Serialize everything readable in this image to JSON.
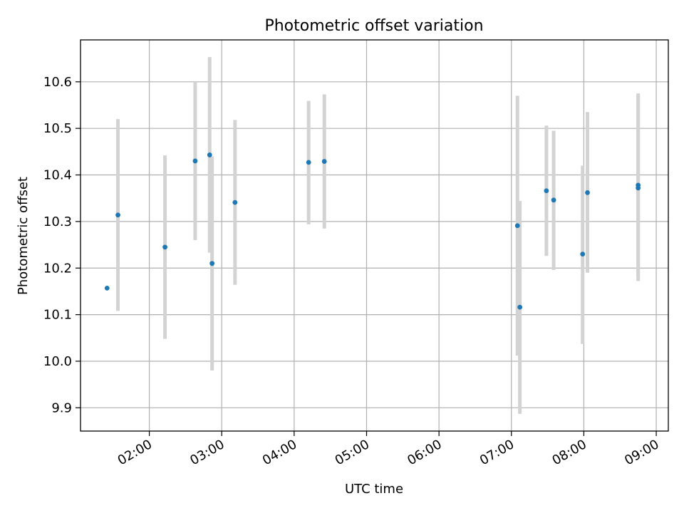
{
  "chart_data": {
    "type": "scatter",
    "title": "Photometric offset variation",
    "xlabel": "UTC time",
    "ylabel": "Photometric offset",
    "grid": true,
    "x_axis_kind": "time",
    "xlim": [
      "01:03",
      "09:10"
    ],
    "ylim": [
      9.85,
      10.69
    ],
    "x_ticks": [
      "02:00",
      "03:00",
      "04:00",
      "05:00",
      "06:00",
      "07:00",
      "08:00",
      "09:00"
    ],
    "y_ticks": [
      "9.9",
      "10.0",
      "10.1",
      "10.2",
      "10.3",
      "10.4",
      "10.5",
      "10.6"
    ],
    "colors": {
      "points": "#1f77b4",
      "error_bars": "#d3d3d3",
      "grid": "#b0b0b0"
    },
    "points": [
      {
        "x": "01:25",
        "y": 10.157
      },
      {
        "x": "01:34",
        "y": 10.314,
        "err_low": 10.108,
        "err_high": 10.52
      },
      {
        "x": "02:13",
        "y": 10.245,
        "err_low": 10.048,
        "err_high": 10.442
      },
      {
        "x": "02:38",
        "y": 10.43,
        "err_low": 10.26,
        "err_high": 10.6
      },
      {
        "x": "02:50",
        "y": 10.443,
        "err_low": 10.233,
        "err_high": 10.653
      },
      {
        "x": "02:52",
        "y": 10.21,
        "err_low": 9.98,
        "err_high": 10.44
      },
      {
        "x": "03:11",
        "y": 10.341,
        "err_low": 10.164,
        "err_high": 10.518
      },
      {
        "x": "04:12",
        "y": 10.427,
        "err_low": 10.294,
        "err_high": 10.559
      },
      {
        "x": "04:25",
        "y": 10.429,
        "err_low": 10.285,
        "err_high": 10.573
      },
      {
        "x": "07:05",
        "y": 10.291,
        "err_low": 10.012,
        "err_high": 10.57
      },
      {
        "x": "07:07",
        "y": 10.116,
        "err_low": 9.887,
        "err_high": 10.344
      },
      {
        "x": "07:29",
        "y": 10.366,
        "err_low": 10.226,
        "err_high": 10.506
      },
      {
        "x": "07:35",
        "y": 10.346,
        "err_low": 10.196,
        "err_high": 10.495
      },
      {
        "x": "07:59",
        "y": 10.23,
        "err_low": 10.037,
        "err_high": 10.42
      },
      {
        "x": "08:03",
        "y": 10.362,
        "err_low": 10.19,
        "err_high": 10.535
      },
      {
        "x": "08:45",
        "y": 10.372,
        "err_low": 10.172,
        "err_high": 10.572
      },
      {
        "x": "08:45",
        "y": 10.378,
        "err_low": 10.181,
        "err_high": 10.575
      }
    ]
  }
}
